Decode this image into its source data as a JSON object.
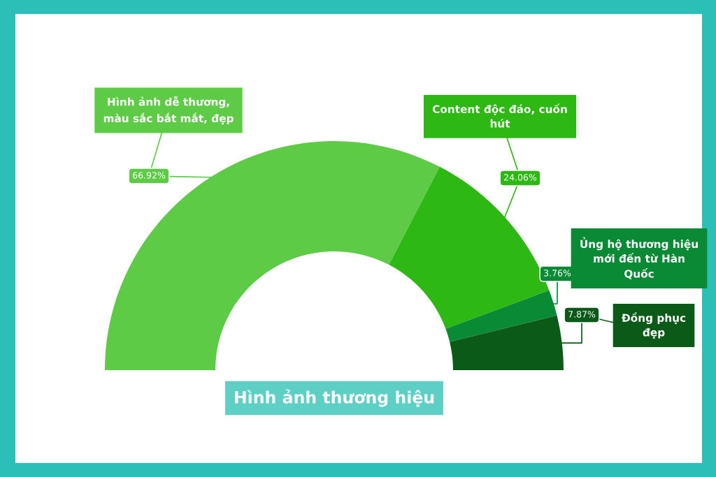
{
  "chart_data": {
    "type": "donut",
    "title": "Hình ảnh thương hiệu",
    "categories": [
      "Hình ảnh dễ thương, màu sắc bắt mắt, đẹp",
      "Content độc đáo, cuốn hút",
      "Ủng hộ thương hiệu mới đến từ Hàn Quốc",
      "Đồng phục đẹp"
    ],
    "values": [
      66.92,
      24.06,
      3.76,
      7.87
    ],
    "value_labels": [
      "66.92%",
      "24.06%",
      "3.76%",
      "7.87%"
    ],
    "colors": [
      "#5ecb47",
      "#2db814",
      "#0a8a35",
      "#0b5a18"
    ]
  }
}
